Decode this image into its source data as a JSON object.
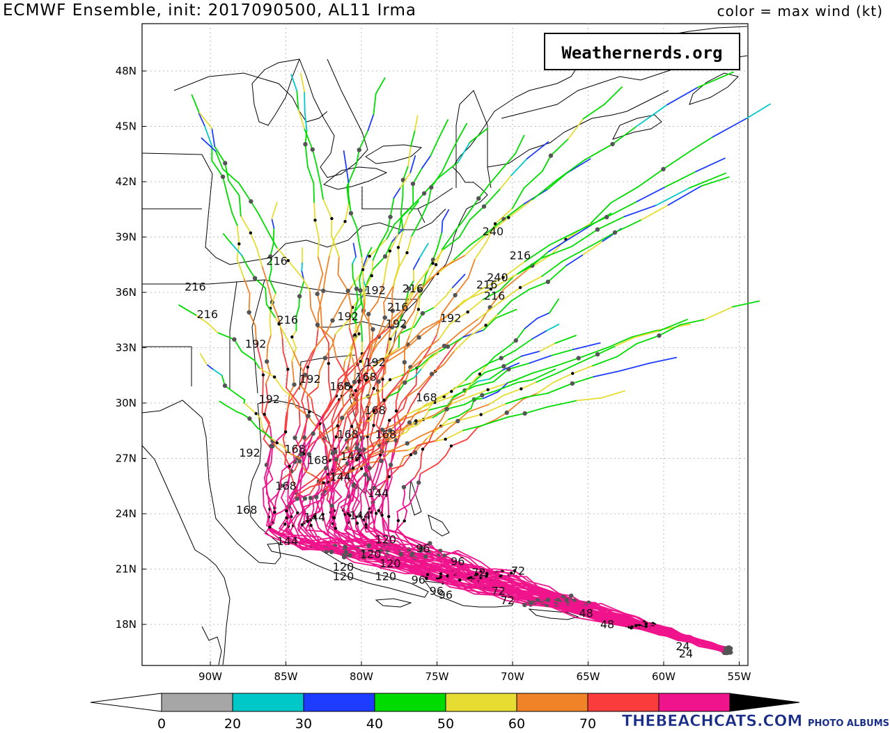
{
  "header": {
    "title": "ECMWF Ensemble, init: 2017090500, AL11 Irma",
    "subtitle": "color = max wind (kt)"
  },
  "credit_box": "Weathernerds.org",
  "axes": {
    "lon_labels": [
      "90W",
      "85W",
      "80W",
      "75W",
      "70W",
      "65W",
      "60W",
      "55W"
    ],
    "lat_labels": [
      "18N",
      "21N",
      "24N",
      "27N",
      "30N",
      "33N",
      "36N",
      "39N",
      "42N",
      "45N",
      "48N"
    ]
  },
  "colorbar": {
    "ticks": [
      "0",
      "20",
      "30",
      "40",
      "50",
      "60",
      "70"
    ],
    "colors": [
      "#a6a6a6",
      "#00c8c8",
      "#1e3cff",
      "#00dc00",
      "#e6dc32",
      "#f08228",
      "#fa3c3c",
      "#f0148c"
    ]
  },
  "watermark": {
    "main": "THEBEACHCATS.COM",
    "sub": "PHOTO ALBUMS"
  },
  "hour_labels": [
    {
      "t": "216",
      "lon": -91.7,
      "lat": 36.1
    },
    {
      "t": "216",
      "lon": -90.9,
      "lat": 34.6
    },
    {
      "t": "216",
      "lon": -86.3,
      "lat": 37.5
    },
    {
      "t": "192",
      "lon": -87.7,
      "lat": 33.0
    },
    {
      "t": "216",
      "lon": -85.6,
      "lat": 34.3
    },
    {
      "t": "192",
      "lon": -84.1,
      "lat": 31.1
    },
    {
      "t": "192",
      "lon": -86.8,
      "lat": 30.0
    },
    {
      "t": "168",
      "lon": -82.1,
      "lat": 30.7
    },
    {
      "t": "168",
      "lon": -80.4,
      "lat": 31.2
    },
    {
      "t": "192",
      "lon": -79.8,
      "lat": 32.0
    },
    {
      "t": "192",
      "lon": -81.6,
      "lat": 34.5
    },
    {
      "t": "192",
      "lon": -79.8,
      "lat": 35.9
    },
    {
      "t": "216",
      "lon": -77.3,
      "lat": 36.0
    },
    {
      "t": "216",
      "lon": -78.3,
      "lat": 35.0
    },
    {
      "t": "192",
      "lon": -78.4,
      "lat": 34.1
    },
    {
      "t": "192",
      "lon": -74.8,
      "lat": 34.4
    },
    {
      "t": "240",
      "lon": -72.0,
      "lat": 39.1
    },
    {
      "t": "216",
      "lon": -70.2,
      "lat": 37.8
    },
    {
      "t": "240",
      "lon": -71.7,
      "lat": 36.6
    },
    {
      "t": "216",
      "lon": -72.4,
      "lat": 36.2
    },
    {
      "t": "216",
      "lon": -71.9,
      "lat": 35.6
    },
    {
      "t": "168",
      "lon": -76.4,
      "lat": 30.1
    },
    {
      "t": "168",
      "lon": -79.8,
      "lat": 29.4
    },
    {
      "t": "168",
      "lon": -79.1,
      "lat": 28.1
    },
    {
      "t": "168",
      "lon": -81.6,
      "lat": 28.1
    },
    {
      "t": "192",
      "lon": -88.1,
      "lat": 27.1
    },
    {
      "t": "168",
      "lon": -85.1,
      "lat": 27.3
    },
    {
      "t": "168",
      "lon": -83.6,
      "lat": 26.7
    },
    {
      "t": "144",
      "lon": -81.4,
      "lat": 26.9
    },
    {
      "t": "144",
      "lon": -82.1,
      "lat": 25.8
    },
    {
      "t": "168",
      "lon": -85.7,
      "lat": 25.3
    },
    {
      "t": "144",
      "lon": -79.6,
      "lat": 24.9
    },
    {
      "t": "168",
      "lon": -88.3,
      "lat": 24.0
    },
    {
      "t": "144",
      "lon": -83.8,
      "lat": 23.6
    },
    {
      "t": "144",
      "lon": -80.8,
      "lat": 23.7
    },
    {
      "t": "144",
      "lon": -85.6,
      "lat": 22.3
    },
    {
      "t": "120",
      "lon": -79.1,
      "lat": 22.4
    },
    {
      "t": "120",
      "lon": -80.1,
      "lat": 21.6
    },
    {
      "t": "120",
      "lon": -81.9,
      "lat": 20.9
    },
    {
      "t": "120",
      "lon": -81.9,
      "lat": 20.4
    },
    {
      "t": "120",
      "lon": -79.1,
      "lat": 20.4
    },
    {
      "t": "120",
      "lon": -78.8,
      "lat": 21.1
    },
    {
      "t": "96",
      "lon": -76.4,
      "lat": 21.9
    },
    {
      "t": "96",
      "lon": -74.1,
      "lat": 21.2
    },
    {
      "t": "96",
      "lon": -76.7,
      "lat": 20.2
    },
    {
      "t": "96",
      "lon": -75.5,
      "lat": 19.6
    },
    {
      "t": "96",
      "lon": -74.9,
      "lat": 19.4
    },
    {
      "t": "72",
      "lon": -72.7,
      "lat": 20.6
    },
    {
      "t": "72",
      "lon": -70.1,
      "lat": 20.7
    },
    {
      "t": "72",
      "lon": -71.4,
      "lat": 19.6
    },
    {
      "t": "72",
      "lon": -70.8,
      "lat": 19.1
    },
    {
      "t": "48",
      "lon": -65.6,
      "lat": 18.4
    },
    {
      "t": "48",
      "lon": -64.2,
      "lat": 17.8
    },
    {
      "t": "24",
      "lon": -59.2,
      "lat": 16.6
    },
    {
      "t": "24",
      "lon": -59.0,
      "lat": 16.2
    }
  ]
}
